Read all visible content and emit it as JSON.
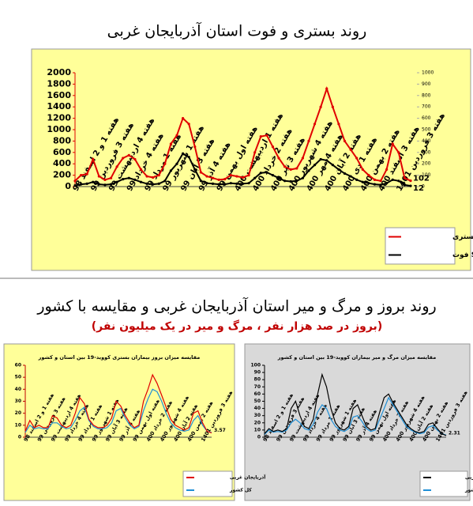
{
  "section_title": "روند بروز و مرگ و میر استان آذربایجان غربی و مقایسه با کشور",
  "section_subtitle": "(بروز در صد هزار نفر ، مرگ و میر در یک میلیون نفر)",
  "chart_data": [
    {
      "type": "line",
      "title": "روند بستری و فوت استان آذربایجان غربی",
      "categories": [
        "هفته 1 و 2 اسفند 98",
        null,
        null,
        "هفته 3 فروردین 99",
        null,
        null,
        "هفته 4 اردیبهشت 99",
        null,
        null,
        "هفته 4 خرداد 99",
        null,
        null,
        "هفته 1 مرداد 99",
        null,
        null,
        "هفته 1 شهریور 99",
        null,
        null,
        "هفته 3 آبان 99",
        null,
        null,
        "هفته 4 آذر 99",
        null,
        null,
        "هفته اول بهمن 99",
        null,
        null,
        "هفته 1 اردیبهشت 400",
        null,
        null,
        "هفته 2 خرداد 400",
        null,
        null,
        "هفته 3 تیر 400",
        null,
        null,
        "هفته 4 شهریور 400",
        null,
        null,
        "هفته 4 مهر 400",
        null,
        null,
        "هفته 2 آبان 400",
        null,
        null,
        "هفته 1 دی 400",
        null,
        null,
        "هفته 2 بهمن 400",
        null,
        null,
        "هفته 3 اسفند 400",
        null,
        null,
        "هفته 3 فروردین 1401",
        null,
        null
      ],
      "series": [
        {
          "name": "Sum of بستری",
          "color": "#e00000",
          "show_last_label": true,
          "values": [
            100,
            200,
            220,
            480,
            180,
            120,
            150,
            350,
            500,
            550,
            480,
            300,
            180,
            160,
            200,
            400,
            750,
            900,
            1200,
            1100,
            700,
            250,
            180,
            150,
            120,
            130,
            200,
            180,
            160,
            200,
            600,
            880,
            900,
            700,
            500,
            350,
            300,
            320,
            500,
            800,
            1100,
            1400,
            1720,
            1400,
            1100,
            800,
            650,
            500,
            300,
            200,
            120,
            100,
            300,
            750,
            600,
            150,
            102
          ]
        },
        {
          "name": "Sum of فوت",
          "color": "#000000",
          "show_last_label": true,
          "values": [
            20,
            40,
            50,
            80,
            40,
            30,
            40,
            80,
            130,
            150,
            120,
            80,
            50,
            40,
            50,
            100,
            280,
            400,
            580,
            520,
            300,
            100,
            60,
            50,
            40,
            40,
            60,
            50,
            50,
            60,
            150,
            240,
            250,
            200,
            150,
            100,
            90,
            100,
            150,
            280,
            380,
            480,
            460,
            380,
            300,
            230,
            180,
            120,
            80,
            60,
            40,
            30,
            60,
            120,
            100,
            30,
            12
          ]
        }
      ],
      "ylim": [
        0,
        2000
      ],
      "yticks": [
        0,
        200,
        400,
        600,
        800,
        1000,
        1200,
        1400,
        1600,
        1800,
        2000
      ],
      "y2lim": [
        0,
        1000
      ],
      "y2ticks": [
        0,
        100,
        200,
        300,
        400,
        500,
        600,
        700,
        800,
        900,
        1000
      ],
      "legend": "bottom-right"
    },
    {
      "type": "line",
      "title": "مقایسه میزان بروز بیماران بستری کووید-19 بین استان و کشور",
      "categories": [
        "هفته 1 و 2 اسفند 98",
        null,
        null,
        "هفته 3 فروردین 99",
        null,
        null,
        "هفته 4 اردیبهشت 99",
        null,
        null,
        "هفته 4 خرداد 99",
        null,
        null,
        "هفته 1 مرداد 99",
        null,
        null,
        "هفته 1 شهریور 99",
        null,
        null,
        "هفته 3 آبان 99",
        null,
        null,
        "هفته 4 آذر 99",
        null,
        null,
        "هفته اول بهمن 99",
        null,
        null,
        "هفته 2 خرداد 400",
        null,
        null,
        "هفته 4 شهریور 400",
        null,
        null,
        "هفته 2 آبان 400",
        null,
        null,
        "هفته 2 بهمن 400",
        null,
        null,
        "هفته 3 فروردین 1401",
        null,
        null
      ],
      "series": [
        {
          "name": "آذربایجان غربی",
          "color": "#e00000",
          "show_last_label": true,
          "values": [
            5,
            14,
            8,
            10,
            8,
            8,
            18,
            16,
            10,
            8,
            10,
            20,
            33,
            28,
            15,
            10,
            8,
            8,
            10,
            16,
            30,
            26,
            18,
            12,
            8,
            10,
            30,
            40,
            52,
            45,
            35,
            25,
            15,
            10,
            8,
            6,
            8,
            20,
            22,
            12,
            5,
            3.57
          ]
        },
        {
          "name": "کل کشور",
          "color": "#1f8fd6",
          "values": [
            4,
            10,
            7,
            8,
            7,
            7,
            12,
            12,
            9,
            7,
            8,
            14,
            22,
            25,
            14,
            9,
            7,
            7,
            8,
            12,
            22,
            24,
            16,
            10,
            7,
            9,
            22,
            32,
            40,
            38,
            30,
            20,
            12,
            8,
            6,
            5,
            6,
            14,
            18,
            10,
            5,
            4
          ]
        }
      ],
      "ylim": [
        0,
        60
      ],
      "yticks": [
        0,
        10,
        20,
        30,
        40,
        50,
        60
      ],
      "legend": "bottom-right"
    },
    {
      "type": "line",
      "title": "مقایسه میزان مرگ و میر بیماران کووید-19 بین استان و کشور",
      "categories": [
        "هفته 1 و 2 اسفند 98",
        null,
        null,
        "هفته 3 فروردین 99",
        null,
        null,
        "هفته 4 اردیبهشت 99",
        null,
        null,
        "هفته 4 خرداد 99",
        null,
        null,
        "هفته 1 مرداد 99",
        null,
        null,
        "هفته 1 شهریور 99",
        null,
        null,
        "هفته 3 آبان 99",
        null,
        null,
        "هفته 4 آذر 99",
        null,
        null,
        "هفته اول بهمن 99",
        null,
        null,
        "هفته 2 خرداد 400",
        null,
        null,
        "هفته 4 شهریور 400",
        null,
        null,
        "هفته 2 آبان 400",
        null,
        null,
        "هفته 2 بهمن 400",
        null,
        null,
        "هفته 3 فروردین 1401",
        null,
        null
      ],
      "series": [
        {
          "name": "آذربایجان غربی",
          "color": "#000000",
          "show_last_label": true,
          "values": [
            5,
            12,
            8,
            10,
            8,
            12,
            40,
            50,
            30,
            15,
            12,
            25,
            60,
            87,
            70,
            40,
            20,
            12,
            10,
            15,
            40,
            45,
            30,
            15,
            10,
            12,
            35,
            55,
            60,
            48,
            38,
            28,
            18,
            12,
            8,
            6,
            8,
            18,
            20,
            12,
            5,
            2.31
          ]
        },
        {
          "name": "کل کشور",
          "color": "#1f8fd6",
          "values": [
            4,
            10,
            7,
            8,
            7,
            10,
            20,
            25,
            20,
            12,
            10,
            18,
            35,
            45,
            40,
            25,
            15,
            10,
            8,
            12,
            28,
            30,
            22,
            12,
            8,
            10,
            25,
            40,
            55,
            45,
            35,
            25,
            15,
            10,
            7,
            5,
            6,
            14,
            16,
            10,
            5,
            3
          ]
        }
      ],
      "ylim": [
        0,
        100
      ],
      "yticks": [
        0,
        10,
        20,
        30,
        40,
        50,
        60,
        70,
        80,
        90,
        100
      ],
      "legend": "bottom-right"
    }
  ]
}
